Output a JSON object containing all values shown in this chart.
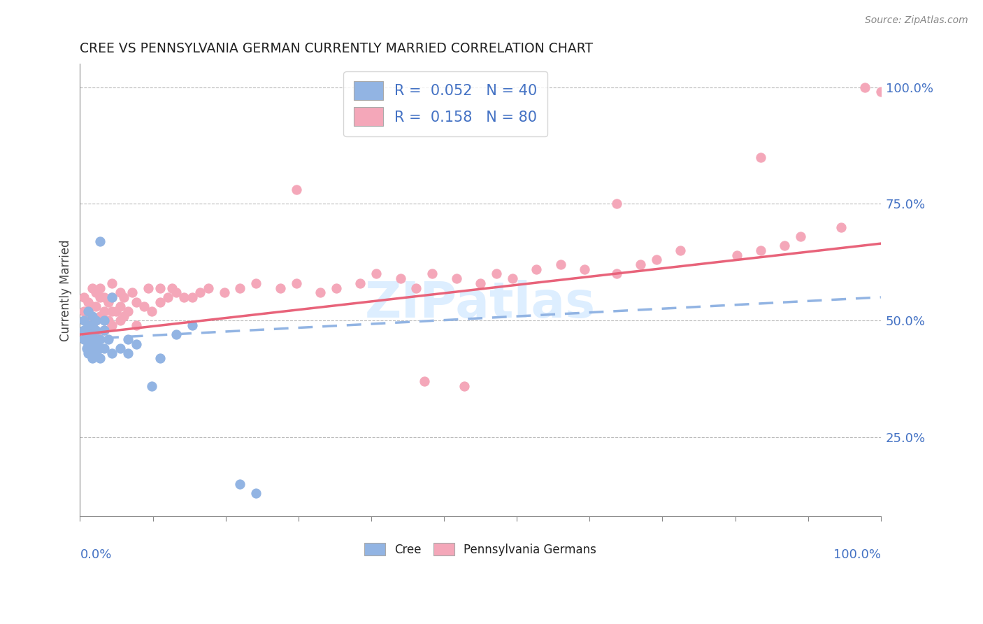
{
  "title": "CREE VS PENNSYLVANIA GERMAN CURRENTLY MARRIED CORRELATION CHART",
  "source_text": "Source: ZipAtlas.com",
  "ylabel": "Currently Married",
  "ylabel_right_ticks": [
    "25.0%",
    "50.0%",
    "75.0%",
    "100.0%"
  ],
  "ylabel_right_values": [
    0.25,
    0.5,
    0.75,
    1.0
  ],
  "xmin": 0.0,
  "xmax": 1.0,
  "ymin": 0.08,
  "ymax": 1.05,
  "cree_R": 0.052,
  "cree_N": 40,
  "pa_german_R": 0.158,
  "pa_german_N": 80,
  "cree_color": "#92b4e3",
  "pa_german_color": "#f4a7b9",
  "cree_line_color": "#92b4e3",
  "pa_german_line_color": "#e8637a",
  "watermark": "ZIPatlas",
  "cree_line_x0": 0.0,
  "cree_line_y0": 0.46,
  "cree_line_x1": 1.0,
  "cree_line_y1": 0.55,
  "pa_line_x0": 0.0,
  "pa_line_y0": 0.47,
  "pa_line_x1": 1.0,
  "pa_line_y1": 0.665,
  "cree_x": [
    0.005,
    0.005,
    0.005,
    0.008,
    0.008,
    0.01,
    0.01,
    0.01,
    0.01,
    0.01,
    0.015,
    0.015,
    0.015,
    0.015,
    0.015,
    0.015,
    0.02,
    0.02,
    0.02,
    0.02,
    0.025,
    0.025,
    0.025,
    0.025,
    0.03,
    0.03,
    0.03,
    0.035,
    0.04,
    0.04,
    0.05,
    0.06,
    0.06,
    0.07,
    0.09,
    0.1,
    0.12,
    0.14,
    0.2,
    0.22
  ],
  "cree_y": [
    0.46,
    0.48,
    0.5,
    0.44,
    0.47,
    0.43,
    0.45,
    0.47,
    0.49,
    0.52,
    0.42,
    0.44,
    0.46,
    0.47,
    0.49,
    0.51,
    0.43,
    0.45,
    0.48,
    0.5,
    0.42,
    0.44,
    0.46,
    0.67,
    0.44,
    0.48,
    0.5,
    0.46,
    0.43,
    0.55,
    0.44,
    0.43,
    0.46,
    0.45,
    0.36,
    0.42,
    0.47,
    0.49,
    0.15,
    0.13
  ],
  "pa_x": [
    0.005,
    0.005,
    0.01,
    0.01,
    0.015,
    0.015,
    0.015,
    0.02,
    0.02,
    0.02,
    0.02,
    0.025,
    0.025,
    0.025,
    0.03,
    0.03,
    0.03,
    0.035,
    0.035,
    0.04,
    0.04,
    0.04,
    0.04,
    0.045,
    0.05,
    0.05,
    0.05,
    0.055,
    0.055,
    0.06,
    0.065,
    0.07,
    0.07,
    0.08,
    0.085,
    0.09,
    0.1,
    0.1,
    0.11,
    0.115,
    0.12,
    0.13,
    0.14,
    0.15,
    0.16,
    0.18,
    0.2,
    0.22,
    0.25,
    0.27,
    0.3,
    0.32,
    0.35,
    0.37,
    0.4,
    0.42,
    0.44,
    0.47,
    0.5,
    0.52,
    0.54,
    0.57,
    0.6,
    0.63,
    0.67,
    0.7,
    0.72,
    0.75,
    0.82,
    0.85,
    0.88,
    0.9,
    0.95,
    0.98,
    1.0,
    0.27,
    0.43,
    0.48,
    0.67,
    0.85
  ],
  "pa_y": [
    0.52,
    0.55,
    0.5,
    0.54,
    0.49,
    0.53,
    0.57,
    0.47,
    0.5,
    0.53,
    0.56,
    0.51,
    0.55,
    0.57,
    0.48,
    0.52,
    0.55,
    0.5,
    0.54,
    0.49,
    0.52,
    0.55,
    0.58,
    0.52,
    0.5,
    0.53,
    0.56,
    0.51,
    0.55,
    0.52,
    0.56,
    0.49,
    0.54,
    0.53,
    0.57,
    0.52,
    0.54,
    0.57,
    0.55,
    0.57,
    0.56,
    0.55,
    0.55,
    0.56,
    0.57,
    0.56,
    0.57,
    0.58,
    0.57,
    0.58,
    0.56,
    0.57,
    0.58,
    0.6,
    0.59,
    0.57,
    0.6,
    0.59,
    0.58,
    0.6,
    0.59,
    0.61,
    0.62,
    0.61,
    0.6,
    0.62,
    0.63,
    0.65,
    0.64,
    0.65,
    0.66,
    0.68,
    0.7,
    1.0,
    0.99,
    0.78,
    0.37,
    0.36,
    0.75,
    0.85
  ]
}
